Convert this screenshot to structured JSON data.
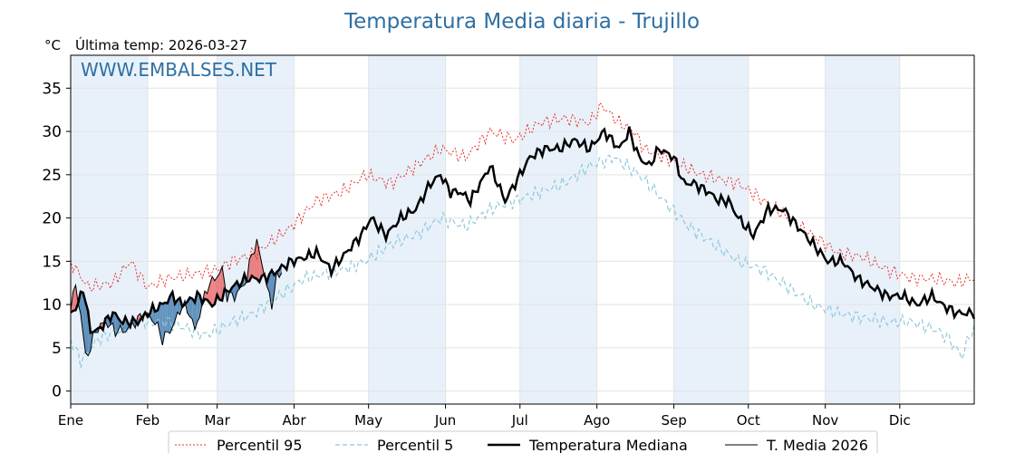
{
  "chart_data": {
    "type": "line",
    "title": "Temperatura Media diaria - Trujillo",
    "unit_label": "°C",
    "subtitle": "Última temp: 2026-03-27",
    "watermark": "WWW.EMBALSES.NET",
    "ylim": [
      -1.5,
      38.8
    ],
    "y_ticks": [
      0,
      5,
      10,
      15,
      20,
      25,
      30,
      35
    ],
    "x_months": [
      "Ene",
      "Feb",
      "Mar",
      "Abr",
      "May",
      "Jun",
      "Jul",
      "Ago",
      "Sep",
      "Oct",
      "Nov",
      "Dic"
    ],
    "grid": true,
    "legend_position": "bottom",
    "colors": {
      "title": "#2e6fa3",
      "watermark": "#2e6fa3",
      "p95": "#e8302e",
      "p5": "#8fc8dd",
      "median": "#000000",
      "current": "#000000",
      "band": "#e8f1fa",
      "above": "#e8585a",
      "below": "#2f6fa8"
    },
    "series": [
      {
        "key": "p95",
        "name": "Percentil 95",
        "style": "dotted",
        "anchors": [
          [
            1,
            15
          ],
          [
            8,
            12
          ],
          [
            18,
            12.5
          ],
          [
            25,
            15
          ],
          [
            32,
            12
          ],
          [
            40,
            13
          ],
          [
            50,
            13.5
          ],
          [
            60,
            14
          ],
          [
            66,
            15
          ],
          [
            76,
            16
          ],
          [
            90,
            19
          ],
          [
            100,
            22
          ],
          [
            110,
            23
          ],
          [
            120,
            25
          ],
          [
            130,
            24
          ],
          [
            140,
            26
          ],
          [
            150,
            28
          ],
          [
            160,
            27
          ],
          [
            170,
            30
          ],
          [
            180,
            29
          ],
          [
            190,
            31
          ],
          [
            200,
            31.5
          ],
          [
            210,
            31
          ],
          [
            215,
            33
          ],
          [
            222,
            31
          ],
          [
            228,
            30
          ],
          [
            232,
            28
          ],
          [
            240,
            27
          ],
          [
            248,
            26
          ],
          [
            255,
            25
          ],
          [
            262,
            24.5
          ],
          [
            270,
            24
          ],
          [
            280,
            22
          ],
          [
            290,
            20
          ],
          [
            300,
            18
          ],
          [
            310,
            16
          ],
          [
            320,
            15.5
          ],
          [
            330,
            14
          ],
          [
            340,
            13
          ],
          [
            350,
            13
          ],
          [
            358,
            12.5
          ],
          [
            364,
            13
          ]
        ]
      },
      {
        "key": "p5",
        "name": "Percentil 5",
        "style": "dashed",
        "anchors": [
          [
            1,
            6
          ],
          [
            5,
            3.5
          ],
          [
            12,
            6
          ],
          [
            20,
            7
          ],
          [
            30,
            8
          ],
          [
            40,
            8
          ],
          [
            50,
            7
          ],
          [
            55,
            6.5
          ],
          [
            60,
            7
          ],
          [
            66,
            8
          ],
          [
            75,
            9
          ],
          [
            85,
            11
          ],
          [
            95,
            13
          ],
          [
            110,
            14
          ],
          [
            120,
            15
          ],
          [
            130,
            17
          ],
          [
            140,
            18
          ],
          [
            150,
            20
          ],
          [
            160,
            19
          ],
          [
            170,
            21
          ],
          [
            180,
            22
          ],
          [
            190,
            23
          ],
          [
            200,
            24
          ],
          [
            210,
            26
          ],
          [
            220,
            27
          ],
          [
            230,
            25
          ],
          [
            240,
            22
          ],
          [
            250,
            19
          ],
          [
            260,
            17
          ],
          [
            270,
            15
          ],
          [
            280,
            14
          ],
          [
            290,
            12
          ],
          [
            300,
            10
          ],
          [
            310,
            9
          ],
          [
            320,
            8.5
          ],
          [
            330,
            8
          ],
          [
            340,
            8
          ],
          [
            350,
            7
          ],
          [
            355,
            6
          ],
          [
            360,
            4
          ],
          [
            364,
            7
          ]
        ]
      },
      {
        "key": "median",
        "name": "Temperatura Mediana",
        "style": "solid-thick",
        "anchors": [
          [
            1,
            9
          ],
          [
            4,
            10
          ],
          [
            6,
            12
          ],
          [
            9,
            7
          ],
          [
            12,
            7
          ],
          [
            18,
            9
          ],
          [
            22,
            8
          ],
          [
            28,
            8
          ],
          [
            32,
            9
          ],
          [
            38,
            10
          ],
          [
            42,
            11
          ],
          [
            46,
            10
          ],
          [
            52,
            11
          ],
          [
            58,
            10
          ],
          [
            60,
            10.5
          ],
          [
            66,
            12
          ],
          [
            72,
            13
          ],
          [
            78,
            13
          ],
          [
            82,
            13.5
          ],
          [
            90,
            15
          ],
          [
            96,
            15.5
          ],
          [
            100,
            16
          ],
          [
            106,
            14
          ],
          [
            112,
            16
          ],
          [
            118,
            18
          ],
          [
            122,
            20
          ],
          [
            128,
            18
          ],
          [
            134,
            20
          ],
          [
            140,
            21
          ],
          [
            146,
            24
          ],
          [
            150,
            25
          ],
          [
            154,
            23
          ],
          [
            158,
            23
          ],
          [
            162,
            22
          ],
          [
            166,
            24
          ],
          [
            170,
            26
          ],
          [
            176,
            22
          ],
          [
            182,
            25
          ],
          [
            186,
            27
          ],
          [
            192,
            28
          ],
          [
            198,
            28
          ],
          [
            204,
            29
          ],
          [
            210,
            28
          ],
          [
            216,
            30
          ],
          [
            222,
            28
          ],
          [
            226,
            30
          ],
          [
            230,
            27
          ],
          [
            234,
            26
          ],
          [
            238,
            28
          ],
          [
            244,
            27
          ],
          [
            248,
            24
          ],
          [
            252,
            24
          ],
          [
            258,
            23
          ],
          [
            262,
            22
          ],
          [
            266,
            22
          ],
          [
            270,
            20
          ],
          [
            276,
            18
          ],
          [
            282,
            21
          ],
          [
            288,
            21
          ],
          [
            294,
            19
          ],
          [
            300,
            17
          ],
          [
            306,
            15
          ],
          [
            312,
            15
          ],
          [
            318,
            13
          ],
          [
            324,
            12
          ],
          [
            330,
            11
          ],
          [
            336,
            11
          ],
          [
            342,
            10
          ],
          [
            348,
            11
          ],
          [
            352,
            10
          ],
          [
            358,
            9
          ],
          [
            364,
            9
          ]
        ]
      },
      {
        "key": "current",
        "name": "T. Media 2026",
        "style": "solid-thin",
        "last_day": 86,
        "anchors": [
          [
            1,
            10
          ],
          [
            3,
            12
          ],
          [
            5,
            9
          ],
          [
            7,
            4
          ],
          [
            9,
            5
          ],
          [
            11,
            7
          ],
          [
            15,
            8
          ],
          [
            19,
            7
          ],
          [
            23,
            7
          ],
          [
            27,
            8
          ],
          [
            31,
            9
          ],
          [
            35,
            8
          ],
          [
            38,
            6
          ],
          [
            41,
            7
          ],
          [
            43,
            8
          ],
          [
            46,
            10
          ],
          [
            49,
            9
          ],
          [
            51,
            7
          ],
          [
            54,
            10
          ],
          [
            56,
            12
          ],
          [
            59,
            13
          ],
          [
            62,
            14
          ],
          [
            64,
            11
          ],
          [
            67,
            11
          ],
          [
            70,
            12
          ],
          [
            72,
            13
          ],
          [
            74,
            16
          ],
          [
            76,
            17
          ],
          [
            78,
            15
          ],
          [
            80,
            12
          ],
          [
            82,
            10
          ],
          [
            84,
            13
          ],
          [
            86,
            14
          ]
        ]
      }
    ]
  }
}
